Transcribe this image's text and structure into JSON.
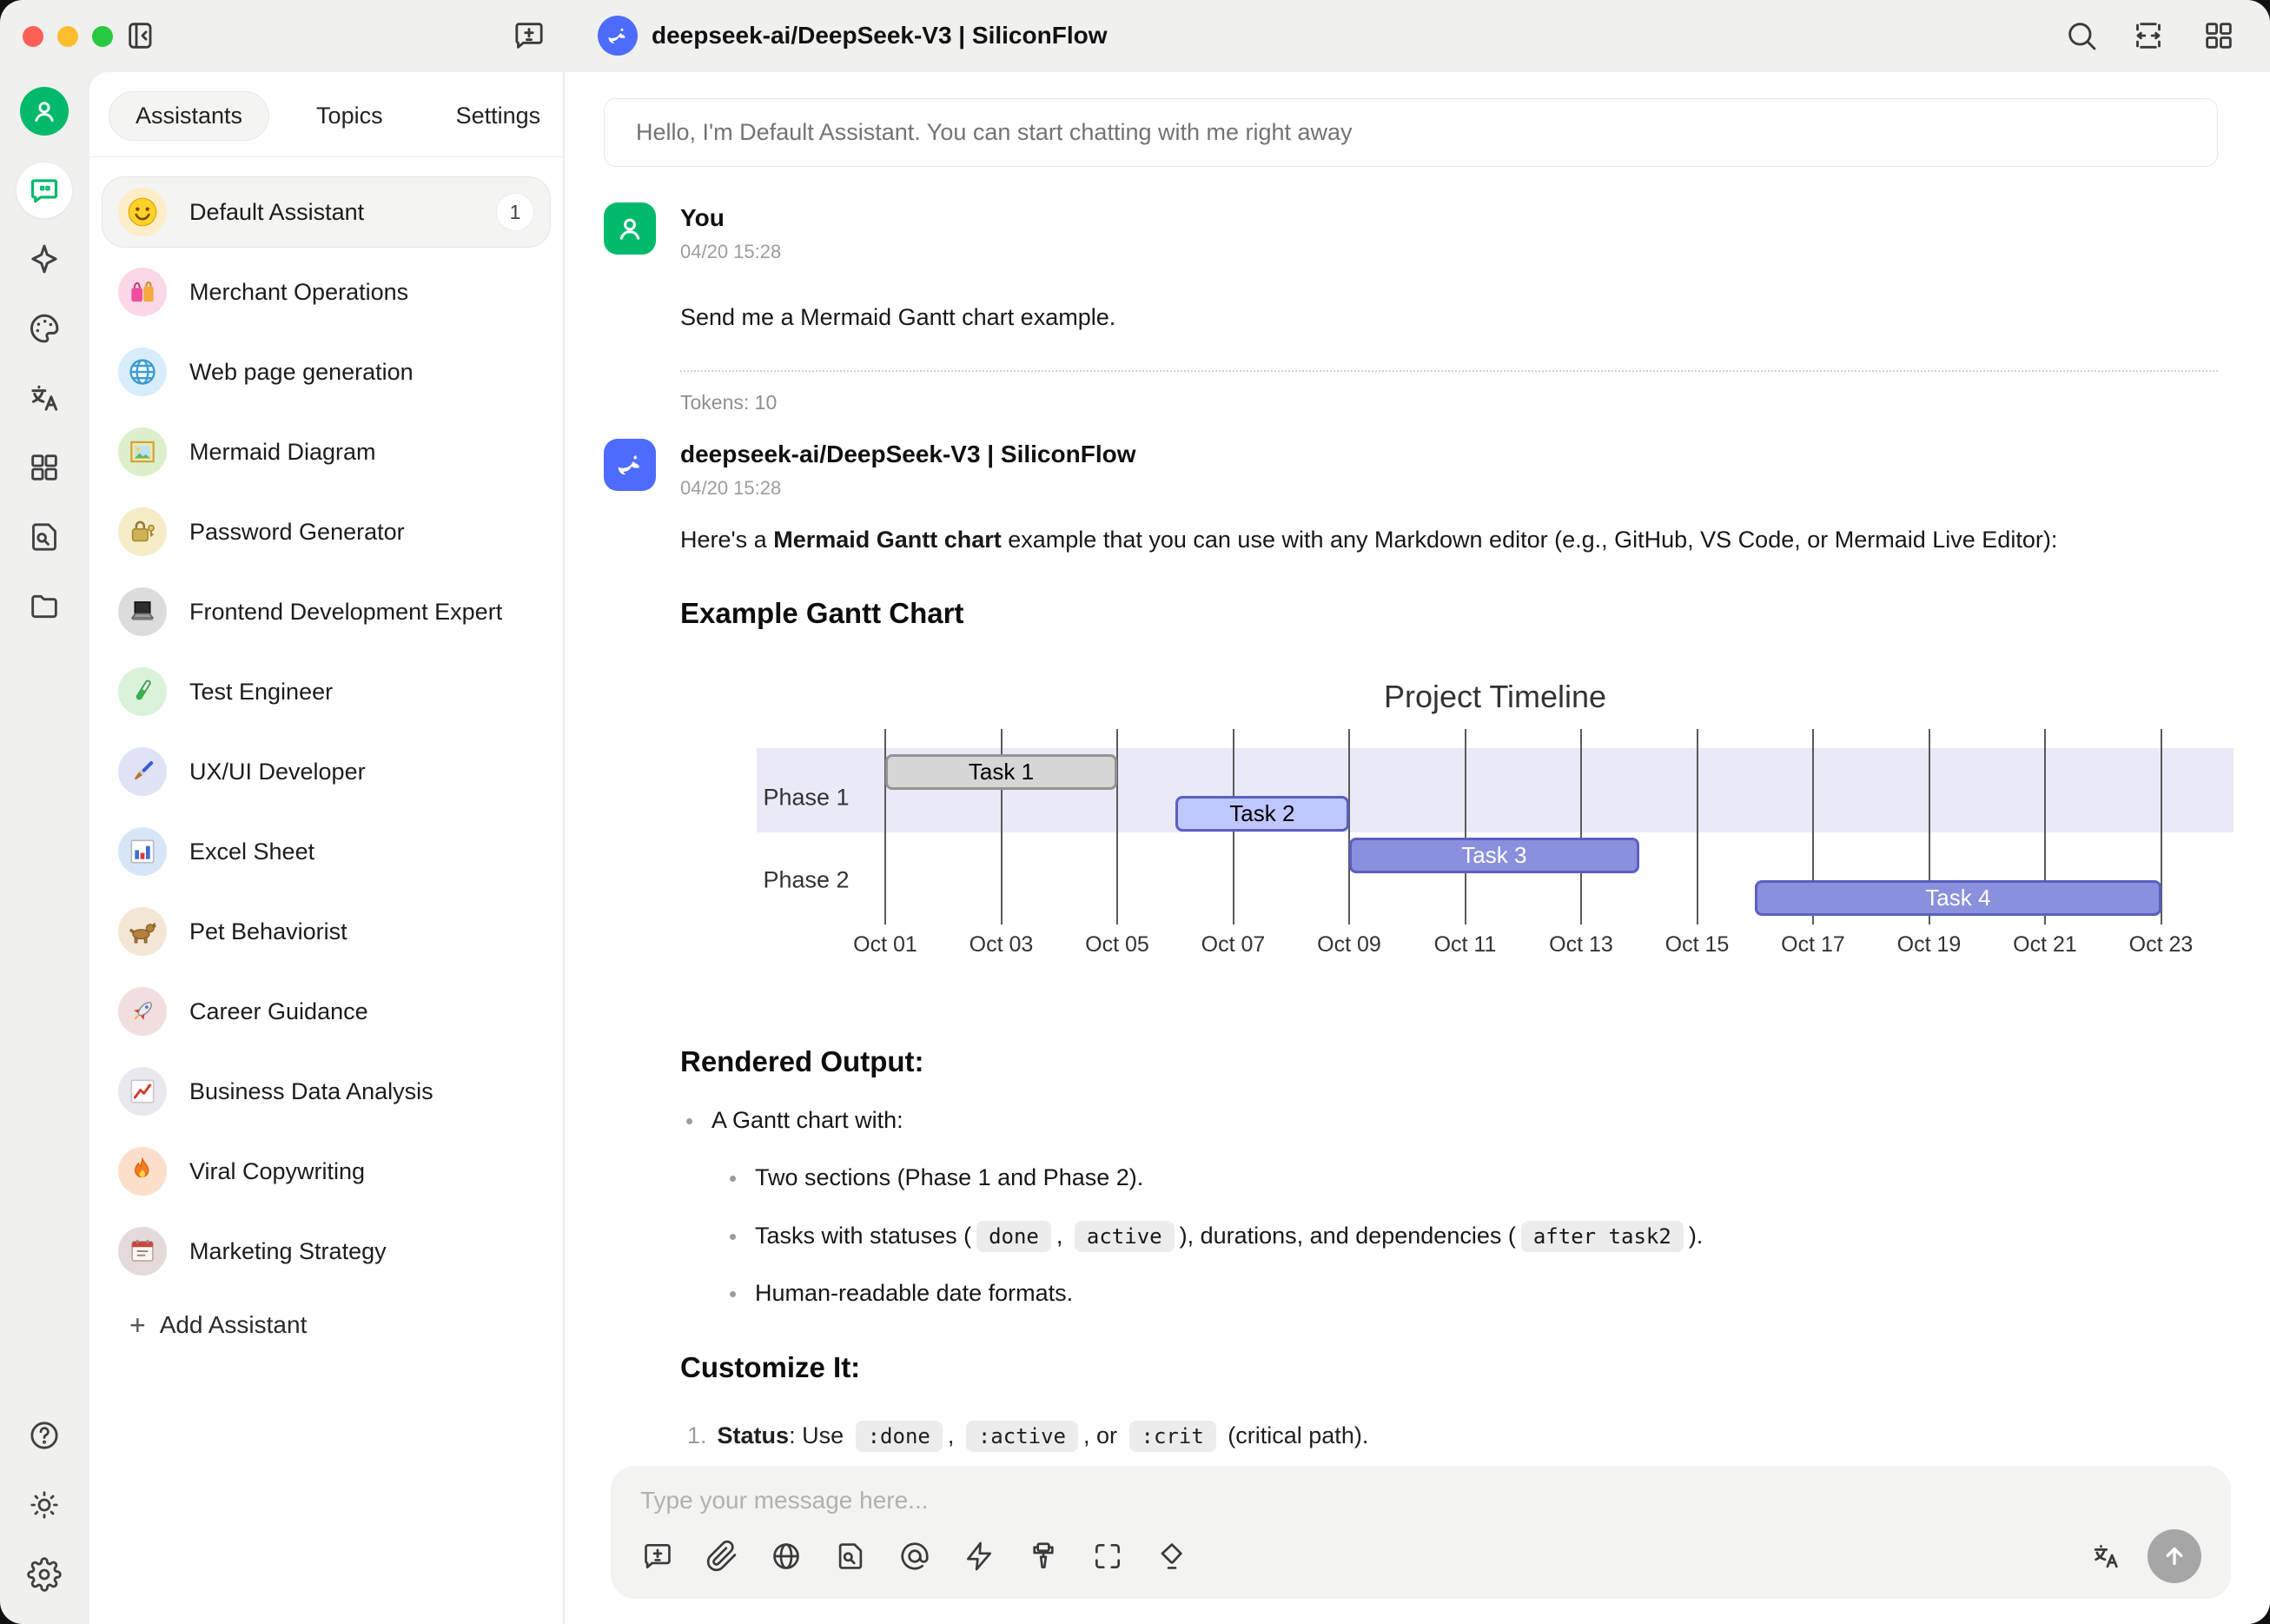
{
  "titlebar": {
    "model_title": "deepseek-ai/DeepSeek-V3 | SiliconFlow"
  },
  "icon_rail": {
    "icons": [
      "user-avatar",
      "chat",
      "agents-sparkle",
      "paintings-palette",
      "translate",
      "mini-apps-grid",
      "knowledge-file-search",
      "files-folder",
      "help",
      "theme-sun",
      "settings-gear"
    ]
  },
  "sidebar": {
    "tabs": [
      {
        "label": "Assistants"
      },
      {
        "label": "Topics"
      },
      {
        "label": "Settings"
      }
    ],
    "assistants": [
      {
        "name": "Default Assistant",
        "badge": "1",
        "icon": "smiley"
      },
      {
        "name": "Merchant Operations",
        "icon": "shopping-bags"
      },
      {
        "name": "Web page generation",
        "icon": "globe"
      },
      {
        "name": "Mermaid Diagram",
        "icon": "framed-picture"
      },
      {
        "name": "Password Generator",
        "icon": "lock-with-key"
      },
      {
        "name": "Frontend Development Expert",
        "icon": "laptop"
      },
      {
        "name": "Test Engineer",
        "icon": "test-tube"
      },
      {
        "name": "UX/UI Developer",
        "icon": "paintbrush"
      },
      {
        "name": "Excel Sheet",
        "icon": "bar-chart"
      },
      {
        "name": "Pet Behaviorist",
        "icon": "dog"
      },
      {
        "name": "Career Guidance",
        "icon": "rocket"
      },
      {
        "name": "Business Data Analysis",
        "icon": "chart-increasing"
      },
      {
        "name": "Viral Copywriting",
        "icon": "fire"
      },
      {
        "name": "Marketing Strategy",
        "icon": "calendar"
      }
    ],
    "add_assistant_label": "Add Assistant",
    "add_assistant_plus": "+"
  },
  "chat": {
    "greeting": "Hello, I'm Default Assistant. You can start chatting with me right away",
    "user_message": {
      "author": "You",
      "time": "04/20 15:28",
      "text": "Send me a Mermaid Gantt chart example.",
      "tokens": "Tokens: 10"
    },
    "assistant_message": {
      "author": "deepseek-ai/DeepSeek-V3 | SiliconFlow",
      "time": "04/20 15:28",
      "intro": [
        "Here's a ",
        "Mermaid Gantt chart",
        " example that you can use with any Markdown editor (e.g., GitHub, VS Code, or Mermaid Live Editor):"
      ],
      "chart_heading": "Example Gantt Chart",
      "rendered_heading": "Rendered Output:",
      "bullet_intro": "A Gantt chart with:",
      "bullet_sections": "Two sections (Phase 1 and Phase 2).",
      "bullet_tasks": [
        "Tasks with statuses (",
        "done",
        ", ",
        "active",
        "), durations, and dependencies (",
        "after task2",
        ")."
      ],
      "bullet_dates": "Human-readable date formats.",
      "customize_heading": "Customize It:",
      "customize_item": {
        "num": "1.",
        "bold": "Status",
        "segments": [
          ": Use ",
          ":done",
          ", ",
          ":active",
          ", or ",
          ":crit",
          " (critical path)."
        ]
      }
    }
  },
  "input": {
    "placeholder": "Type your message here...",
    "icons": [
      "new-topic",
      "attachment",
      "web-search",
      "knowledge",
      "mention",
      "quick-phrases",
      "paintbrush",
      "expand",
      "clear-context",
      "translate",
      "send"
    ]
  },
  "chart_data": {
    "type": "gantt",
    "title": "Project Timeline",
    "sections": [
      {
        "name": "Phase 1"
      },
      {
        "name": "Phase 2"
      }
    ],
    "tasks": [
      {
        "label": "Task 1",
        "section": "Phase 1",
        "status": "done",
        "start": "Oct 01",
        "end": "Oct 05",
        "start_day": 1,
        "end_day": 5
      },
      {
        "label": "Task 2",
        "section": "Phase 1",
        "status": "active",
        "start": "Oct 06",
        "end": "Oct 09",
        "start_day": 6,
        "end_day": 9
      },
      {
        "label": "Task 3",
        "section": "Phase 2",
        "status": "task",
        "start": "Oct 09",
        "end": "Oct 14",
        "start_day": 9,
        "end_day": 14
      },
      {
        "label": "Task 4",
        "section": "Phase 2",
        "status": "task",
        "start": "Oct 16",
        "end": "Oct 23",
        "start_day": 16,
        "end_day": 23
      }
    ],
    "x_ticks": [
      {
        "label": "Oct 01",
        "day": 1
      },
      {
        "label": "Oct 03",
        "day": 3
      },
      {
        "label": "Oct 05",
        "day": 5
      },
      {
        "label": "Oct 07",
        "day": 7
      },
      {
        "label": "Oct 09",
        "day": 9
      },
      {
        "label": "Oct 11",
        "day": 11
      },
      {
        "label": "Oct 13",
        "day": 13
      },
      {
        "label": "Oct 15",
        "day": 15
      },
      {
        "label": "Oct 17",
        "day": 17
      },
      {
        "label": "Oct 19",
        "day": 19
      },
      {
        "label": "Oct 21",
        "day": 21
      },
      {
        "label": "Oct 23",
        "day": 23
      }
    ],
    "axis": {
      "min_day": 1,
      "max_day": 23
    },
    "legend": "off",
    "colors": {
      "section_band": "#e9e9f8",
      "task_fill": "#8a90dd",
      "task_border": "#5a5fc0",
      "task_text": "#ffffff",
      "active_fill": "#bfc7ff",
      "active_border": "#5a5fc0",
      "active_text": "#000000",
      "done_fill": "#d6d6d6",
      "done_border": "#939393",
      "done_text": "#000000",
      "grid_line": "#5a5a5a",
      "text": "#333333"
    }
  }
}
